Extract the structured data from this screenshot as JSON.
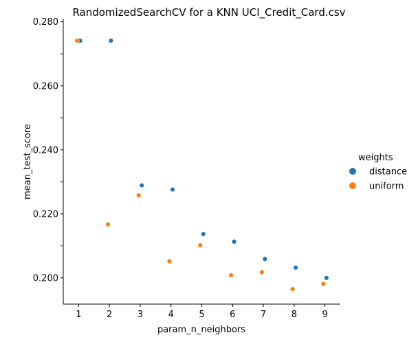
{
  "chart_data": {
    "type": "scatter",
    "title": "RandomizedSearchCV for a KNN UCI_Credit_Card.csv",
    "xlabel": "param_n_neighbors",
    "ylabel": "mean_test_score",
    "xlim": [
      0.5,
      9.5
    ],
    "ylim": [
      0.1918,
      0.2808
    ],
    "xticks": [
      1,
      2,
      3,
      4,
      5,
      6,
      7,
      8,
      9
    ],
    "yticks": [
      0.2,
      0.21,
      0.22,
      0.23,
      0.24,
      0.25,
      0.26,
      0.27,
      0.28
    ],
    "ytick_labels": [
      "0.200",
      "0.210",
      "0.220",
      "0.230",
      "0.240",
      "0.250",
      "0.260",
      "0.270",
      "0.280"
    ],
    "grid": false,
    "legend": {
      "title": "weights",
      "placement": "right"
    },
    "series": [
      {
        "name": "distance",
        "color": "#1f77b4",
        "points": [
          [
            1,
            0.2741
          ],
          [
            2,
            0.2741
          ],
          [
            3,
            0.2289
          ],
          [
            4,
            0.2276
          ],
          [
            5,
            0.2137
          ],
          [
            6,
            0.2113
          ],
          [
            7,
            0.2059
          ],
          [
            8,
            0.2032
          ],
          [
            9,
            0.2
          ]
        ]
      },
      {
        "name": "uniform",
        "color": "#ff7f0e",
        "points": [
          [
            1,
            0.2741
          ],
          [
            2,
            0.2167
          ],
          [
            3,
            0.2258
          ],
          [
            4,
            0.2052
          ],
          [
            5,
            0.2102
          ],
          [
            6,
            0.2008
          ],
          [
            7,
            0.2018
          ],
          [
            8,
            0.1965
          ],
          [
            9,
            0.1981
          ]
        ]
      }
    ]
  }
}
